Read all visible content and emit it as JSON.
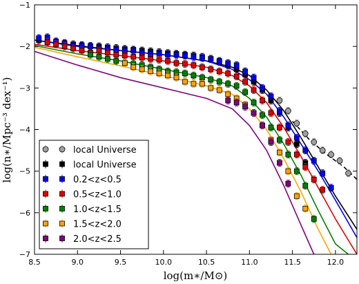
{
  "chart_data": {
    "type": "scatter",
    "xlabel": "log(m∗/M⊙)",
    "ylabel": "log(n∗/Mpc⁻³ dex⁻¹)",
    "xlim": [
      8.5,
      12.25
    ],
    "ylim": [
      -7,
      -1
    ],
    "xticks": [
      "8.5",
      "9.0",
      "9.5",
      "10.0",
      "10.5",
      "11.0",
      "11.5",
      "12.0"
    ],
    "yticks": [
      "−7",
      "−6",
      "−5",
      "−4",
      "−3",
      "−2",
      "−1"
    ],
    "legend_position": "lower-left",
    "grid": false,
    "series": [
      {
        "name": "local Universe",
        "color": "#a0a0a0",
        "marker": "circle",
        "x": [
          11.35,
          11.45,
          11.55,
          11.65,
          11.75,
          11.85,
          11.95,
          12.05,
          12.15
        ],
        "y": [
          -3.3,
          -3.55,
          -3.85,
          -4.1,
          -4.3,
          -4.5,
          -4.6,
          -4.75,
          -5.05
        ]
      },
      {
        "name": "local Universe",
        "color": "#000000",
        "marker": "square",
        "x": [
          8.55,
          8.65,
          8.75,
          8.85,
          8.95,
          9.05,
          9.15,
          9.25,
          9.35,
          9.45,
          9.55,
          9.65,
          9.75,
          9.85,
          9.95,
          10.05,
          10.15,
          10.25,
          10.35,
          10.45,
          10.55,
          10.65,
          10.75,
          10.85,
          10.95,
          11.05,
          11.15,
          11.25,
          11.35,
          11.45,
          11.55,
          11.65
        ],
        "y": [
          -1.85,
          -1.9,
          -1.9,
          -1.93,
          -1.95,
          -1.97,
          -1.99,
          -2.0,
          -2.02,
          -2.04,
          -2.06,
          -2.08,
          -2.1,
          -2.12,
          -2.14,
          -2.16,
          -2.18,
          -2.2,
          -2.22,
          -2.25,
          -2.3,
          -2.37,
          -2.45,
          -2.55,
          -2.68,
          -2.85,
          -3.05,
          -3.3,
          -3.6,
          -3.95,
          -4.35,
          -4.8
        ]
      },
      {
        "name": "0.2<z<0.5",
        "color": "#0000ff",
        "marker": "square",
        "x": [
          8.55,
          8.65,
          8.75,
          8.85,
          8.95,
          9.05,
          9.15,
          9.25,
          9.35,
          9.45,
          9.55,
          9.65,
          9.75,
          9.85,
          9.95,
          10.05,
          10.15,
          10.25,
          10.35,
          10.45,
          10.55,
          10.65,
          10.75,
          10.85,
          10.95,
          11.05,
          11.15,
          11.25,
          11.35,
          11.45,
          11.55,
          11.65,
          11.75,
          11.85,
          11.95
        ],
        "y": [
          -1.8,
          -1.78,
          -1.88,
          -1.92,
          -1.98,
          -1.98,
          -2.0,
          -2.05,
          -2.05,
          -2.08,
          -2.1,
          -2.1,
          -2.15,
          -2.18,
          -2.18,
          -2.2,
          -2.2,
          -2.22,
          -2.25,
          -2.28,
          -2.3,
          -2.35,
          -2.4,
          -2.45,
          -2.6,
          -2.75,
          -3.0,
          -3.2,
          -3.55,
          -3.9,
          -4.2,
          -4.5,
          -4.75,
          -5.05,
          -5.4
        ]
      },
      {
        "name": "0.5<z<1.0",
        "color": "#e00000",
        "marker": "square",
        "x": [
          8.65,
          8.75,
          8.85,
          8.95,
          9.05,
          9.15,
          9.25,
          9.35,
          9.45,
          9.55,
          9.65,
          9.75,
          9.85,
          9.95,
          10.05,
          10.15,
          10.25,
          10.35,
          10.45,
          10.55,
          10.65,
          10.75,
          10.85,
          10.95,
          11.05,
          11.15,
          11.25,
          11.35,
          11.45,
          11.55,
          11.65,
          11.75,
          11.85
        ],
        "y": [
          -1.9,
          -1.95,
          -2.0,
          -2.05,
          -2.1,
          -2.15,
          -2.1,
          -2.15,
          -2.2,
          -2.22,
          -2.25,
          -2.27,
          -2.3,
          -2.32,
          -2.35,
          -2.4,
          -2.42,
          -2.45,
          -2.5,
          -2.55,
          -2.6,
          -2.65,
          -2.72,
          -2.85,
          -3.05,
          -3.3,
          -3.6,
          -3.95,
          -4.3,
          -4.6,
          -4.9,
          -5.2,
          -5.45
        ]
      },
      {
        "name": "1.0<z<1.5",
        "color": "#008000",
        "marker": "square",
        "x": [
          9.15,
          9.25,
          9.35,
          9.45,
          9.55,
          9.65,
          9.75,
          9.85,
          9.95,
          10.05,
          10.15,
          10.25,
          10.35,
          10.45,
          10.55,
          10.65,
          10.75,
          10.85,
          10.95,
          11.05,
          11.15,
          11.25,
          11.35,
          11.45,
          11.55,
          11.65,
          11.75
        ],
        "y": [
          -2.2,
          -2.25,
          -2.3,
          -2.35,
          -2.4,
          -2.42,
          -2.45,
          -2.5,
          -2.55,
          -2.6,
          -2.62,
          -2.65,
          -2.7,
          -2.75,
          -2.8,
          -2.85,
          -2.9,
          -2.95,
          -3.1,
          -3.35,
          -3.65,
          -3.95,
          -4.25,
          -4.6,
          -5.0,
          -5.35,
          -6.15
        ]
      },
      {
        "name": "1.5<z<2.0",
        "color": "#ffa500",
        "marker": "square",
        "x": [
          9.55,
          9.65,
          9.75,
          9.85,
          9.95,
          10.05,
          10.15,
          10.25,
          10.35,
          10.45,
          10.55,
          10.65,
          10.75,
          10.85,
          10.95,
          11.05,
          11.15,
          11.25,
          11.35,
          11.45,
          11.55,
          11.65
        ],
        "y": [
          -2.4,
          -2.5,
          -2.55,
          -2.6,
          -2.65,
          -2.7,
          -2.75,
          -2.85,
          -2.9,
          -2.9,
          -3.0,
          -3.05,
          -3.15,
          -3.25,
          -3.4,
          -3.6,
          -3.9,
          -4.25,
          -4.55,
          -5.0,
          -5.6,
          -5.9
        ]
      },
      {
        "name": "2.0<z<2.5",
        "color": "#800080",
        "marker": "square",
        "x": [
          10.75,
          10.85,
          10.95,
          11.05,
          11.15,
          11.25,
          11.35,
          11.45
        ],
        "y": [
          -3.3,
          -3.35,
          -3.45,
          -3.6,
          -3.9,
          -4.3,
          -4.8,
          -5.3
        ]
      }
    ],
    "fits": [
      {
        "color": "#000000",
        "style": "solid",
        "x": [
          8.5,
          9.0,
          9.5,
          10.0,
          10.5,
          10.8,
          11.0,
          11.2,
          11.4,
          11.6,
          11.8,
          12.0,
          12.25
        ],
        "y": [
          -1.85,
          -1.98,
          -2.1,
          -2.2,
          -2.35,
          -2.5,
          -2.7,
          -3.05,
          -3.55,
          -4.2,
          -4.9,
          -5.6,
          -6.4
        ]
      },
      {
        "color": "#000000",
        "style": "dashed",
        "x": [
          11.5,
          11.7,
          11.9,
          12.1,
          12.25
        ],
        "y": [
          -3.8,
          -4.25,
          -4.6,
          -4.9,
          -5.2
        ]
      },
      {
        "color": "#0000ff",
        "style": "solid",
        "x": [
          8.5,
          9.0,
          9.5,
          10.0,
          10.5,
          10.8,
          11.0,
          11.2,
          11.4,
          11.6,
          11.8,
          12.0,
          12.25
        ],
        "y": [
          -1.85,
          -2.0,
          -2.1,
          -2.2,
          -2.35,
          -2.55,
          -2.8,
          -3.15,
          -3.7,
          -4.35,
          -5.0,
          -5.7,
          -6.6
        ]
      },
      {
        "color": "#e00000",
        "style": "solid",
        "x": [
          8.5,
          9.0,
          9.5,
          10.0,
          10.5,
          10.8,
          11.0,
          11.2,
          11.4,
          11.6,
          11.8,
          12.0,
          12.25
        ],
        "y": [
          -1.95,
          -2.1,
          -2.22,
          -2.35,
          -2.5,
          -2.7,
          -2.95,
          -3.35,
          -3.95,
          -4.65,
          -5.4,
          -6.15,
          -7.0
        ]
      },
      {
        "color": "#008000",
        "style": "solid",
        "x": [
          8.5,
          9.0,
          9.5,
          10.0,
          10.5,
          10.8,
          11.0,
          11.2,
          11.4,
          11.6,
          11.8,
          12.0,
          12.15
        ],
        "y": [
          -1.98,
          -2.18,
          -2.35,
          -2.55,
          -2.75,
          -2.95,
          -3.25,
          -3.7,
          -4.35,
          -5.1,
          -5.95,
          -6.75,
          -7.0
        ]
      },
      {
        "color": "#ffa500",
        "style": "solid",
        "x": [
          8.5,
          9.0,
          9.5,
          10.0,
          10.5,
          10.8,
          11.0,
          11.2,
          11.4,
          11.6,
          11.8,
          11.95
        ],
        "y": [
          -2.02,
          -2.25,
          -2.47,
          -2.7,
          -2.95,
          -3.15,
          -3.5,
          -4.0,
          -4.7,
          -5.5,
          -6.4,
          -7.0
        ]
      },
      {
        "color": "#800080",
        "style": "solid",
        "x": [
          8.5,
          9.0,
          9.5,
          10.0,
          10.5,
          10.8,
          11.0,
          11.2,
          11.4,
          11.6,
          11.75
        ],
        "y": [
          -2.12,
          -2.45,
          -2.75,
          -3.0,
          -3.25,
          -3.5,
          -3.9,
          -4.5,
          -5.35,
          -6.3,
          -7.0
        ]
      }
    ]
  }
}
